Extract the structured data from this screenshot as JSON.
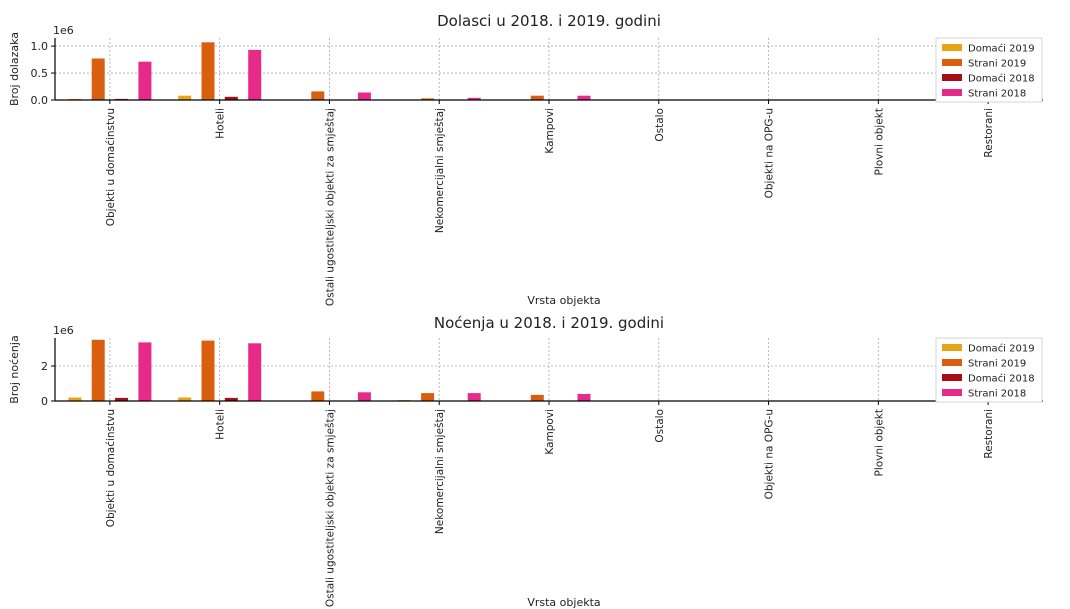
{
  "chart_data": [
    {
      "type": "bar",
      "title": "Dolasci u 2018. i 2019. godini",
      "xlabel": "Vrsta objekta",
      "ylabel": "Broj dolazaka",
      "offset_text": "1e6",
      "ylim": [
        0,
        1.15
      ],
      "yticks": [
        "0.0",
        "0.5",
        "1.0"
      ],
      "ytick_values": [
        0,
        0.5,
        1.0
      ],
      "grid": true,
      "legend_position": "top-right",
      "categories": [
        "Objekti u domaćinstvu",
        "Hoteli",
        "Ostali ugostiteljski objekti za smještaj",
        "Nekomercijalni smještaj",
        "Kampovi",
        "Ostalo",
        "Objekti na OPG-u",
        "Plovni objekt",
        "Restorani"
      ],
      "series": [
        {
          "name": "Domaći 2019",
          "color": "#e8a317",
          "values": [
            0.02,
            0.08,
            0.0,
            0.0,
            0.0,
            0.0,
            0.0,
            0.0,
            0.0
          ]
        },
        {
          "name": "Strani 2019",
          "color": "#d95f0e",
          "values": [
            0.77,
            1.07,
            0.16,
            0.03,
            0.08,
            0.0,
            0.0,
            0.0,
            0.0
          ]
        },
        {
          "name": "Domaći 2018",
          "color": "#a50f15",
          "values": [
            0.02,
            0.06,
            0.0,
            0.0,
            0.0,
            0.0,
            0.0,
            0.0,
            0.0
          ]
        },
        {
          "name": "Strani 2018",
          "color": "#e7298a",
          "values": [
            0.71,
            0.93,
            0.14,
            0.04,
            0.08,
            0.0,
            0.0,
            0.0,
            0.0
          ]
        }
      ]
    },
    {
      "type": "bar",
      "title": "Noćenja u 2018. i 2019. godini",
      "xlabel": "Vrsta objekta",
      "ylabel": "Broj noćenja",
      "offset_text": "1e6",
      "ylim": [
        0,
        3.6
      ],
      "yticks": [
        "0",
        "2"
      ],
      "ytick_values": [
        0,
        2
      ],
      "grid": true,
      "legend_position": "top-right",
      "categories": [
        "Objekti u domaćinstvu",
        "Hoteli",
        "Ostali ugostiteljski objekti za smještaj",
        "Nekomercijalni smještaj",
        "Kampovi",
        "Ostalo",
        "Objekti na OPG-u",
        "Plovni objekt",
        "Restorani"
      ],
      "series": [
        {
          "name": "Domaći 2019",
          "color": "#e8a317",
          "values": [
            0.2,
            0.2,
            0.0,
            0.05,
            0.0,
            0.0,
            0.0,
            0.0,
            0.0
          ]
        },
        {
          "name": "Strani 2019",
          "color": "#d95f0e",
          "values": [
            3.5,
            3.45,
            0.55,
            0.45,
            0.35,
            0.0,
            0.0,
            0.0,
            0.0
          ]
        },
        {
          "name": "Domaći 2018",
          "color": "#a50f15",
          "values": [
            0.18,
            0.18,
            0.0,
            0.03,
            0.0,
            0.0,
            0.0,
            0.0,
            0.0
          ]
        },
        {
          "name": "Strani 2018",
          "color": "#e7298a",
          "values": [
            3.35,
            3.3,
            0.5,
            0.45,
            0.4,
            0.0,
            0.0,
            0.0,
            0.0
          ]
        }
      ]
    }
  ]
}
